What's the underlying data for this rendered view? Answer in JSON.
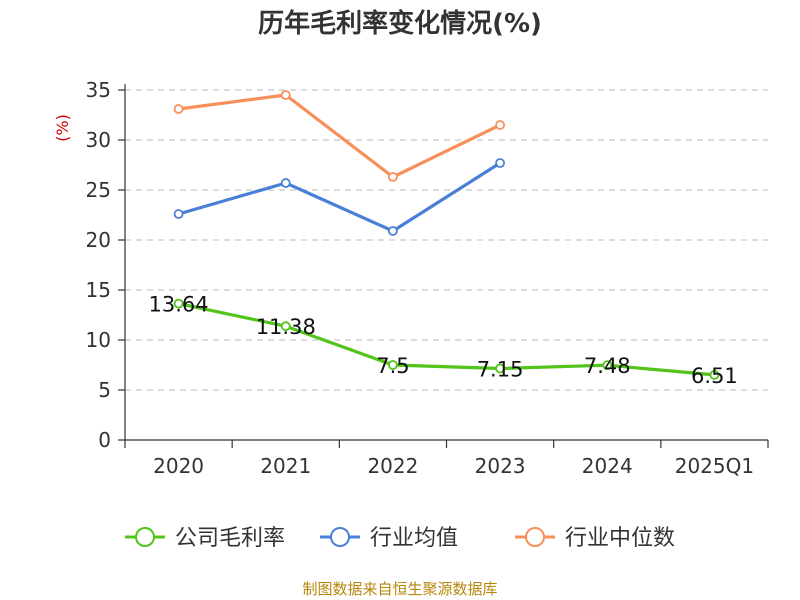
{
  "chart_data": {
    "type": "line",
    "title": "历年毛利率变化情况(%)",
    "ylabel": "(%)",
    "xlabel": "",
    "categories": [
      "2020",
      "2021",
      "2022",
      "2023",
      "2024",
      "2025Q1"
    ],
    "ylim": [
      0,
      35
    ],
    "yticks": [
      0,
      5,
      10,
      15,
      20,
      25,
      30,
      35
    ],
    "grid": true,
    "legend_position": "bottom",
    "series": [
      {
        "name": "公司毛利率",
        "color": "#52c41a",
        "show_labels": true,
        "values": [
          13.64,
          11.38,
          7.5,
          7.15,
          7.48,
          6.51
        ]
      },
      {
        "name": "行业均值",
        "color": "#4a7fd8",
        "show_labels": false,
        "values": [
          22.6,
          25.7,
          20.9,
          27.7,
          null,
          null
        ]
      },
      {
        "name": "行业中位数",
        "color": "#f7905a",
        "show_labels": false,
        "values": [
          33.1,
          34.5,
          26.3,
          31.5,
          null,
          null
        ]
      }
    ]
  },
  "source_text": "制图数据来自恒生聚源数据库"
}
